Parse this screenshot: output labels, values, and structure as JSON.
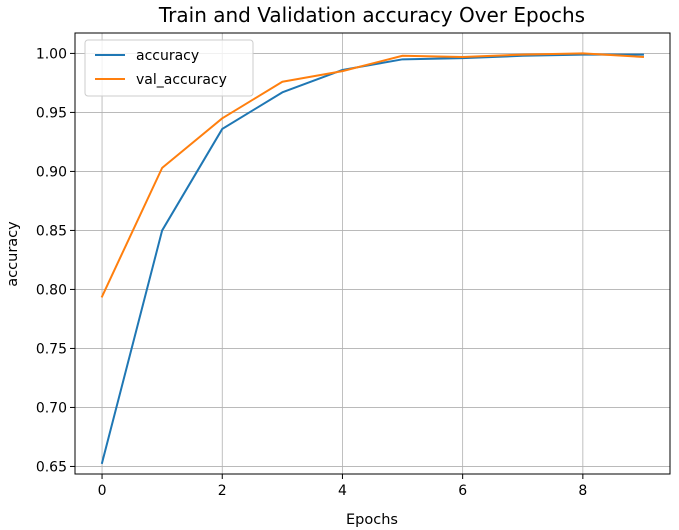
{
  "chart_data": {
    "type": "line",
    "title": "Train and Validation accuracy Over Epochs",
    "xlabel": "Epochs",
    "ylabel": "accuracy",
    "x": [
      0,
      1,
      2,
      3,
      4,
      5,
      6,
      7,
      8,
      9
    ],
    "series": [
      {
        "name": "accuracy",
        "color": "#1f77b4",
        "values": [
          0.653,
          0.85,
          0.936,
          0.967,
          0.986,
          0.995,
          0.996,
          0.998,
          0.999,
          0.999
        ]
      },
      {
        "name": "val_accuracy",
        "color": "#ff7f0e",
        "values": [
          0.794,
          0.903,
          0.945,
          0.976,
          0.985,
          0.998,
          0.997,
          0.999,
          1.0,
          0.997
        ]
      }
    ],
    "xlim": [
      -0.45,
      9.45
    ],
    "ylim": [
      0.6436,
      1.0173
    ],
    "xticks": [
      0,
      2,
      4,
      6,
      8
    ],
    "yticks": [
      0.65,
      0.7,
      0.75,
      0.8,
      0.85,
      0.9,
      0.95,
      1.0
    ],
    "xtick_labels": [
      "0",
      "2",
      "4",
      "6",
      "8"
    ],
    "ytick_labels": [
      "0.65",
      "0.70",
      "0.75",
      "0.80",
      "0.85",
      "0.90",
      "0.95",
      "1.00"
    ],
    "grid": true,
    "legend_position": "upper-left"
  }
}
